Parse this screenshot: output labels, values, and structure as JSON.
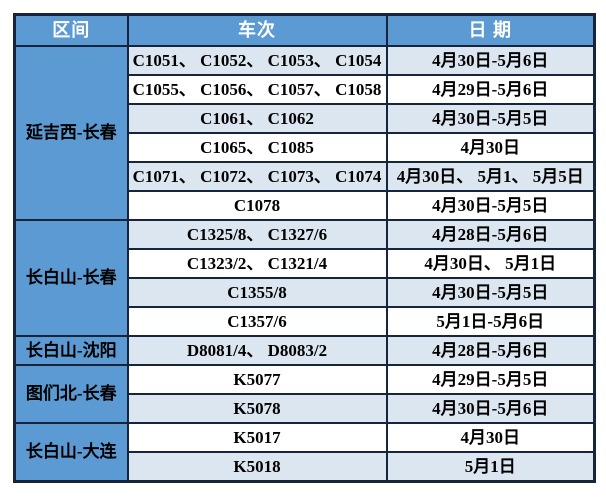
{
  "table": {
    "headers": [
      "区间",
      "车次",
      "日 期"
    ],
    "sections": [
      {
        "label": "延吉西-长春",
        "rows": [
          {
            "trains": "C1051、 C1052、 C1053、 C1054",
            "dates": "4月30日-5月6日"
          },
          {
            "trains": "C1055、 C1056、 C1057、 C1058",
            "dates": "4月29日-5月6日"
          },
          {
            "trains": "C1061、 C1062",
            "dates": "4月30日-5月5日"
          },
          {
            "trains": "C1065、 C1085",
            "dates": "4月30日"
          },
          {
            "trains": "C1071、 C1072、 C1073、 C1074",
            "dates": "4月30日、 5月1、 5月5日"
          },
          {
            "trains": "C1078",
            "dates": "4月30日-5月5日"
          }
        ]
      },
      {
        "label": "长白山-长春",
        "rows": [
          {
            "trains": "C1325/8、 C1327/6",
            "dates": "4月28日-5月6日"
          },
          {
            "trains": "C1323/2、 C1321/4",
            "dates": "4月30日、 5月1日"
          },
          {
            "trains": "C1355/8",
            "dates": "4月30日-5月5日"
          },
          {
            "trains": "C1357/6",
            "dates": "5月1日-5月6日"
          }
        ]
      },
      {
        "label": "长白山-沈阳",
        "rows": [
          {
            "trains": "D8081/4、 D8083/2",
            "dates": "4月28日-5月6日"
          }
        ]
      },
      {
        "label": "图们北-长春",
        "rows": [
          {
            "trains": "K5077",
            "dates": "4月29日-5月5日"
          },
          {
            "trains": "K5078",
            "dates": "4月30日-5月6日"
          }
        ]
      },
      {
        "label": "长白山-大连",
        "rows": [
          {
            "trains": "K5017",
            "dates": "4月30日"
          },
          {
            "trains": "K5018",
            "dates": "5月1日"
          }
        ]
      }
    ]
  },
  "chart_data": {
    "type": "table",
    "title": "",
    "columns": [
      "区间",
      "车次",
      "日 期"
    ],
    "rows": [
      [
        "延吉西-长春",
        "C1051、C1052、C1053、C1054",
        "4月30日-5月6日"
      ],
      [
        "延吉西-长春",
        "C1055、C1056、C1057、C1058",
        "4月29日-5月6日"
      ],
      [
        "延吉西-长春",
        "C1061、C1062",
        "4月30日-5月5日"
      ],
      [
        "延吉西-长春",
        "C1065、C1085",
        "4月30日"
      ],
      [
        "延吉西-长春",
        "C1071、C1072、C1073、C1074",
        "4月30日、5月1、5月5日"
      ],
      [
        "延吉西-长春",
        "C1078",
        "4月30日-5月5日"
      ],
      [
        "长白山-长春",
        "C1325/8、C1327/6",
        "4月28日-5月6日"
      ],
      [
        "长白山-长春",
        "C1323/2、C1321/4",
        "4月30日、5月1日"
      ],
      [
        "长白山-长春",
        "C1355/8",
        "4月30日-5月5日"
      ],
      [
        "长白山-长春",
        "C1357/6",
        "5月1日-5月6日"
      ],
      [
        "长白山-沈阳",
        "D8081/4、D8083/2",
        "4月28日-5月6日"
      ],
      [
        "图们北-长春",
        "K5077",
        "4月29日-5月5日"
      ],
      [
        "图们北-长春",
        "K5078",
        "4月30日-5月6日"
      ],
      [
        "长白山-大连",
        "K5017",
        "4月30日"
      ],
      [
        "长白山-大连",
        "K5018",
        "5月1日"
      ]
    ],
    "merged_row_spans_col1": [
      6,
      4,
      1,
      2,
      2
    ],
    "layout": {
      "grid": true,
      "alternating_row_shading": [
        "#dce6f1",
        "#ffffff"
      ]
    }
  },
  "colors": {
    "header_blue": "#5b9ad2",
    "row_alt_blue": "#dce6f1",
    "row_white": "#ffffff",
    "border_dark": "#16243c",
    "header_text": "#ffffff",
    "body_text": "#000000"
  }
}
